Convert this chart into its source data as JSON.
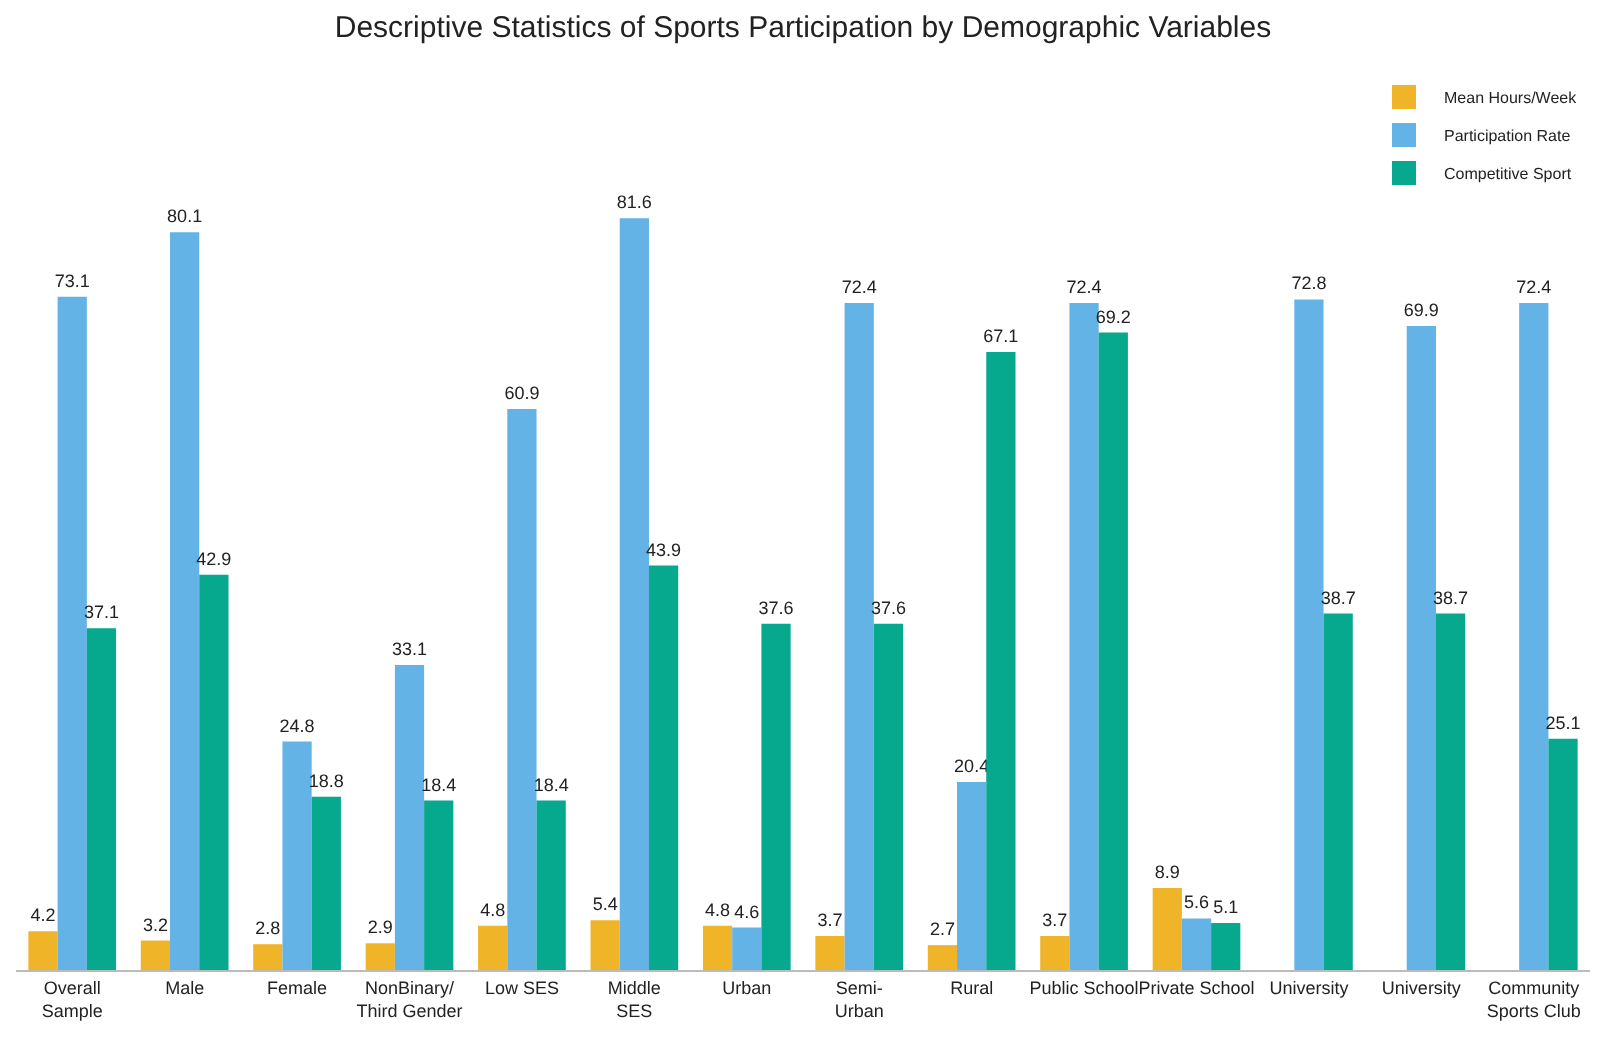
{
  "chart_data": {
    "type": "bar",
    "title": "Descriptive Statistics of Sports Participation by Demographic Variables",
    "categories": [
      "Overall\nSample",
      "Male",
      "Female",
      "NonBinary/\nThird Gender",
      "Low SES",
      "Middle\nSES",
      "Urban",
      "Semi-\nUrban",
      "Rural",
      "Public School",
      "Private School",
      "University",
      "University",
      "Community\nSports Club"
    ],
    "legend": "top right",
    "data_labels": true,
    "series": [
      {
        "name": "Mean Hours/Week",
        "color": "#f0b429",
        "values": [
          4.2,
          3.2,
          2.8,
          2.9,
          4.8,
          5.4,
          4.8,
          3.7,
          2.7,
          3.7,
          8.9,
          null,
          null,
          null
        ]
      },
      {
        "name": "Participation Rate",
        "color": "#63b3e6",
        "values": [
          73.1,
          80.1,
          24.8,
          33.1,
          60.9,
          81.6,
          4.6,
          72.4,
          20.4,
          72.4,
          5.6,
          72.8,
          69.9,
          72.4
        ]
      },
      {
        "name": "Competitive Sport",
        "color": "#06a88e",
        "values": [
          37.1,
          42.9,
          18.8,
          18.4,
          18.4,
          43.9,
          37.6,
          37.6,
          67.1,
          69.2,
          5.1,
          38.7,
          38.7,
          25.1
        ]
      }
    ]
  }
}
